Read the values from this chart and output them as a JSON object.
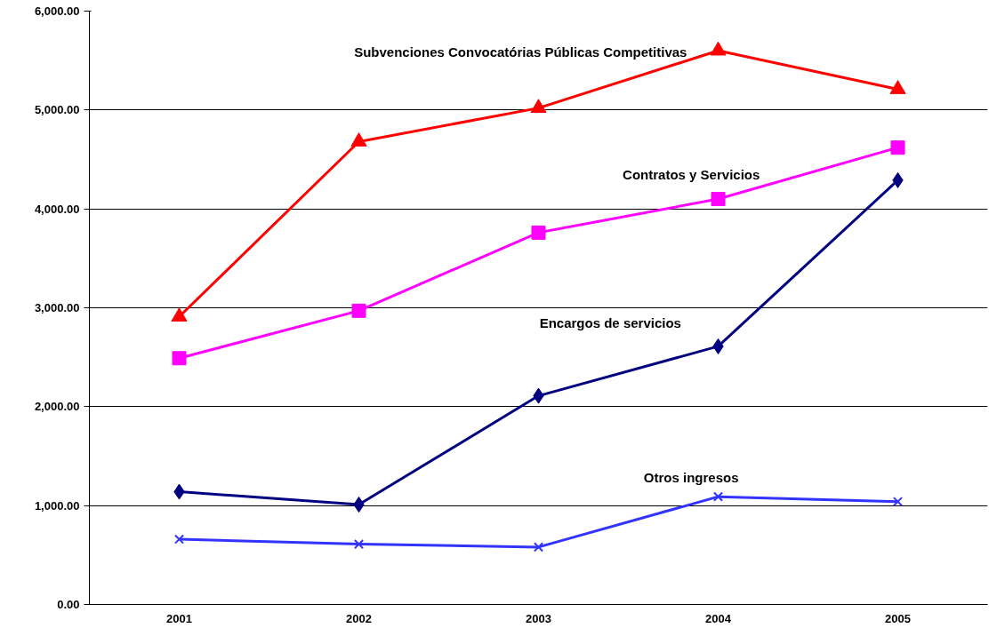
{
  "chart_data": {
    "type": "line",
    "categories": [
      "2001",
      "2002",
      "2003",
      "2004",
      "2005"
    ],
    "ylim": [
      0,
      6000
    ],
    "yticks": [
      {
        "value": 0,
        "label": "0.00"
      },
      {
        "value": 1000,
        "label": "1,000.00"
      },
      {
        "value": 2000,
        "label": "2,000.00"
      },
      {
        "value": 3000,
        "label": "3,000.00"
      },
      {
        "value": 4000,
        "label": "4,000.00"
      },
      {
        "value": 5000,
        "label": "5,000.00"
      },
      {
        "value": 6000,
        "label": "6,000.00"
      }
    ],
    "grid": "y",
    "legend": false,
    "series": [
      {
        "name": "Subvenciones Convocatórias Públicas Competitivas",
        "color": "#ff0000",
        "marker": "triangle",
        "values": [
          2910,
          4680,
          5020,
          5600,
          5210
        ]
      },
      {
        "name": "Contratos y Servicios",
        "color": "#ff00ff",
        "marker": "square",
        "values": [
          2490,
          2970,
          3760,
          4100,
          4620
        ]
      },
      {
        "name": "Encargos de servicios",
        "color": "#000080",
        "marker": "diamond",
        "values": [
          1140,
          1010,
          2110,
          2610,
          4290
        ]
      },
      {
        "name": "Otros ingresos",
        "color": "#3333ff",
        "marker": "cross",
        "values": [
          660,
          610,
          580,
          1090,
          1040
        ]
      }
    ]
  }
}
